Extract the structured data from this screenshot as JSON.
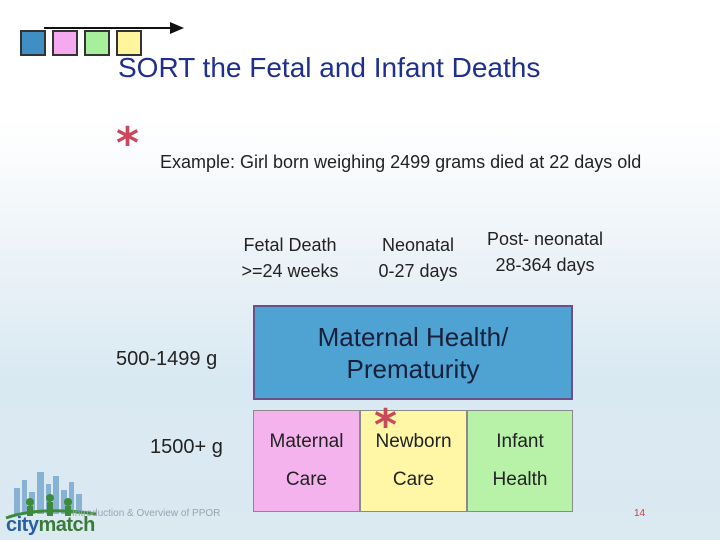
{
  "nav_squares": [
    {
      "name": "blue",
      "color": "#3f8fc4"
    },
    {
      "name": "pink",
      "color": "#f5a9ee"
    },
    {
      "name": "green",
      "color": "#a8ef9c"
    },
    {
      "name": "yellow",
      "color": "#fff59d"
    }
  ],
  "slide": {
    "title": "SORT the Fetal and Infant Deaths",
    "example": "Example:  Girl born weighing 2499 grams died at 22 days old",
    "star_glyph": "*"
  },
  "columns": {
    "fetal": {
      "line1": "Fetal   Death",
      "line2": ">=24 weeks"
    },
    "neonatal": {
      "line1": "Neonatal",
      "line2": "0-27 days"
    },
    "postneonatal": {
      "line1": "Post- neonatal",
      "line2": "28-364 days"
    }
  },
  "rows": {
    "low_weight": "500-1499 g",
    "high_weight": "1500+ g"
  },
  "boxes": {
    "maternal_health": {
      "line1": "Maternal Health/",
      "line2": "Prematurity",
      "color": "#4fa3d3"
    },
    "maternal_care": {
      "line1": "Maternal",
      "line2": "Care",
      "color": "#f5b3ee"
    },
    "newborn_care": {
      "line1": "Newborn",
      "line2": "Care",
      "color": "#fff7a6"
    },
    "infant_health": {
      "line1": "Infant",
      "line2": "Health",
      "color": "#b7f2a8"
    }
  },
  "footer": {
    "text": "Introduction & Overview of PPOR",
    "page_number": "14"
  },
  "logo": {
    "text_city": "city",
    "text_match": "match"
  }
}
